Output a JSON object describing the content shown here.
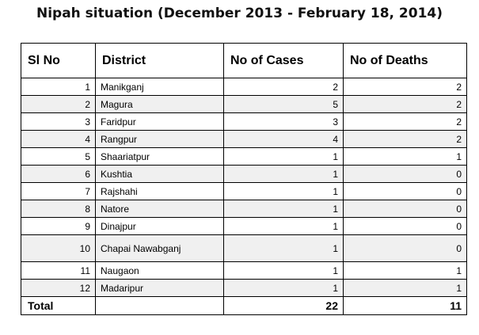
{
  "title": "Nipah situation (December 2013 - February 18, 2014)",
  "table": {
    "headers": [
      "Sl No",
      "District",
      "No of Cases",
      "No of Deaths"
    ],
    "rows": [
      {
        "sl": "1",
        "district": "Manikganj",
        "cases": "2",
        "deaths": "2"
      },
      {
        "sl": "2",
        "district": "Magura",
        "cases": "5",
        "deaths": "2"
      },
      {
        "sl": "3",
        "district": "Faridpur",
        "cases": "3",
        "deaths": "2"
      },
      {
        "sl": "4",
        "district": "Rangpur",
        "cases": "4",
        "deaths": "2"
      },
      {
        "sl": "5",
        "district": "Shaariatpur",
        "cases": "1",
        "deaths": "1"
      },
      {
        "sl": "6",
        "district": "Kushtia",
        "cases": "1",
        "deaths": "0"
      },
      {
        "sl": "7",
        "district": "Rajshahi",
        "cases": "1",
        "deaths": "0"
      },
      {
        "sl": "8",
        "district": "Natore",
        "cases": "1",
        "deaths": "0"
      },
      {
        "sl": "9",
        "district": "Dinajpur",
        "cases": "1",
        "deaths": "0"
      },
      {
        "sl": "10",
        "district": "Chapai Nawabganj",
        "cases": "1",
        "deaths": "0"
      },
      {
        "sl": "11",
        "district": "Naugaon",
        "cases": "1",
        "deaths": "1"
      },
      {
        "sl": "12",
        "district": "Madaripur",
        "cases": "1",
        "deaths": "1"
      }
    ],
    "total": {
      "label": "Total",
      "cases": "22",
      "deaths": "11"
    }
  }
}
